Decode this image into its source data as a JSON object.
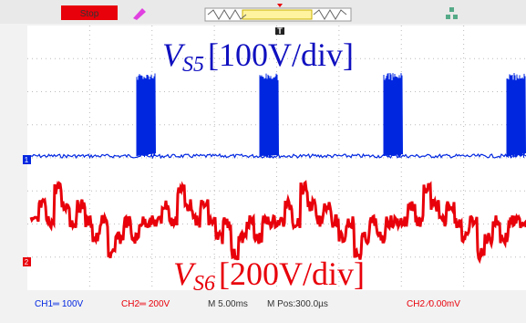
{
  "toolbar": {
    "status": "Stop"
  },
  "traces": [
    {
      "marker": "1",
      "symbol": "V",
      "subscript": "S5",
      "scale": "[100V/div]"
    },
    {
      "marker": "2",
      "symbol": "V",
      "subscript": "S6",
      "scale": "[200V/div]"
    }
  ],
  "trigger_marker": "T",
  "status_bar": {
    "ch1": "CH1═ 100V",
    "ch2": "CH2═ 200V",
    "timebase": "M 5.00ms",
    "position": "M Pos:300.0µs",
    "trigger": "CH2 ∕0.00mV"
  }
}
